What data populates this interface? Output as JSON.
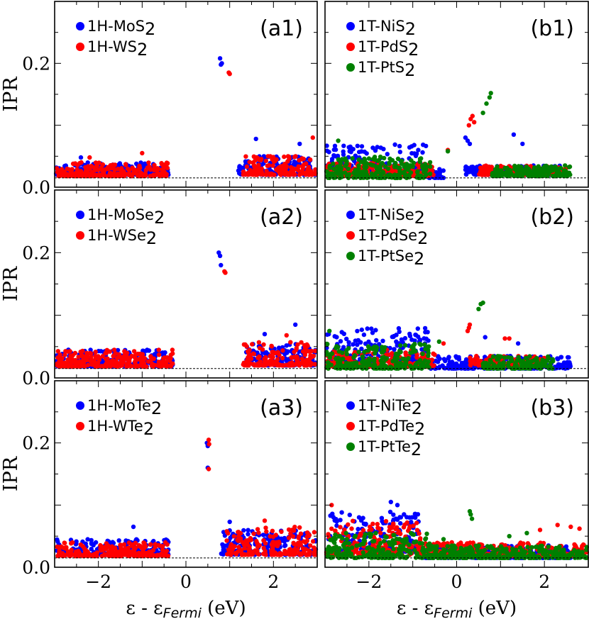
{
  "figure": {
    "y_axis_label": "IPR",
    "x_axis_label": {
      "main": "ε - ε",
      "sub": "Fermi",
      "unit": "(eV)"
    },
    "x_ticks": [
      "−2",
      "0",
      "2"
    ],
    "y_ticks": [
      "0.0",
      "0.2"
    ]
  },
  "chart_data": [
    {
      "id": "a1",
      "type": "scatter",
      "label": "(a1)",
      "xlim": [
        -3,
        3
      ],
      "ylim": [
        0,
        0.3
      ],
      "xlabel": "",
      "ylabel": "IPR",
      "baseline": 0.015,
      "series": [
        {
          "name": "1H-MoS2",
          "formula": [
            "1H-MoS",
            "2"
          ],
          "color": "#0000ff",
          "clusters": [
            [
              -3.0,
              -0.4,
              0.02,
              0.04
            ],
            [
              1.2,
              3.0,
              0.02,
              0.05
            ]
          ],
          "outliers": [
            [
              0.78,
              0.208
            ],
            [
              0.8,
              0.198
            ],
            [
              0.82,
              0.2
            ],
            [
              -2.4,
              0.048
            ],
            [
              1.6,
              0.078
            ],
            [
              2.6,
              0.07
            ]
          ]
        },
        {
          "name": "1H-WS2",
          "formula": [
            "1H-WS",
            "2"
          ],
          "color": "#ff0000",
          "clusters": [
            [
              -3.0,
              -0.4,
              0.018,
              0.04
            ],
            [
              1.3,
              3.0,
              0.02,
              0.05
            ]
          ],
          "outliers": [
            [
              0.98,
              0.185
            ],
            [
              1.0,
              0.183
            ],
            [
              -2.2,
              0.048
            ],
            [
              -1.0,
              0.055
            ],
            [
              2.9,
              0.08
            ]
          ]
        }
      ]
    },
    {
      "id": "b1",
      "type": "scatter",
      "label": "(b1)",
      "xlim": [
        -3,
        3
      ],
      "ylim": [
        0,
        0.3
      ],
      "xlabel": "",
      "ylabel": "",
      "baseline": 0.015,
      "series": [
        {
          "name": "1T-NiS2",
          "formula": [
            "1T-NiS",
            "2"
          ],
          "color": "#0000ff",
          "clusters": [
            [
              -3.0,
              -0.7,
              0.02,
              0.07
            ],
            [
              -0.7,
              -0.3,
              0.015,
              0.03
            ],
            [
              0.2,
              2.5,
              0.02,
              0.035
            ]
          ],
          "outliers": [
            [
              0.2,
              0.08
            ],
            [
              0.25,
              0.075
            ],
            [
              0.3,
              0.07
            ],
            [
              1.3,
              0.085
            ],
            [
              1.5,
              0.07
            ]
          ]
        },
        {
          "name": "1T-PdS2",
          "formula": [
            "1T-PdS",
            "2"
          ],
          "color": "#ff0000",
          "clusters": [
            [
              -3.0,
              -0.5,
              0.018,
              0.04
            ],
            [
              0.5,
              2.5,
              0.02,
              0.035
            ]
          ],
          "outliers": [
            [
              -0.2,
              0.06
            ],
            [
              0.28,
              0.1
            ],
            [
              0.32,
              0.11
            ],
            [
              0.36,
              0.115
            ],
            [
              0.4,
              0.105
            ]
          ]
        },
        {
          "name": "1T-PtS2",
          "formula": [
            "1T-PtS",
            "2"
          ],
          "color": "#008000",
          "clusters": [
            [
              -3.0,
              -0.6,
              0.015,
              0.05
            ],
            [
              0.8,
              2.6,
              0.018,
              0.035
            ]
          ],
          "outliers": [
            [
              -0.2,
              0.058
            ],
            [
              0.6,
              0.12
            ],
            [
              0.68,
              0.135
            ],
            [
              0.75,
              0.145
            ],
            [
              0.78,
              0.152
            ],
            [
              -2.7,
              0.075
            ]
          ]
        }
      ]
    },
    {
      "id": "a2",
      "type": "scatter",
      "label": "(a2)",
      "xlim": [
        -3,
        3
      ],
      "ylim": [
        0,
        0.3
      ],
      "xlabel": "",
      "ylabel": "IPR",
      "baseline": 0.015,
      "series": [
        {
          "name": "1H-MoSe2",
          "formula": [
            "1H-MoSe",
            "2"
          ],
          "color": "#0000ff",
          "clusters": [
            [
              -3.0,
              -0.3,
              0.018,
              0.045
            ],
            [
              1.3,
              3.0,
              0.02,
              0.055
            ]
          ],
          "outliers": [
            [
              0.75,
              0.2
            ],
            [
              0.78,
              0.195
            ],
            [
              0.8,
              0.18
            ],
            [
              2.5,
              0.085
            ],
            [
              1.8,
              0.07
            ]
          ]
        },
        {
          "name": "1H-WSe2",
          "formula": [
            "1H-WSe",
            "2"
          ],
          "color": "#ff0000",
          "clusters": [
            [
              -3.0,
              -0.3,
              0.018,
              0.045
            ],
            [
              1.3,
              3.0,
              0.02,
              0.06
            ]
          ],
          "outliers": [
            [
              0.88,
              0.17
            ],
            [
              0.9,
              0.168
            ],
            [
              2.3,
              0.068
            ]
          ]
        }
      ]
    },
    {
      "id": "b2",
      "type": "scatter",
      "label": "(b2)",
      "xlim": [
        -3,
        3
      ],
      "ylim": [
        0,
        0.3
      ],
      "xlabel": "",
      "ylabel": "",
      "baseline": 0.015,
      "series": [
        {
          "name": "1T-NiSe2",
          "formula": [
            "1T-NiSe",
            "2"
          ],
          "color": "#0000ff",
          "clusters": [
            [
              -3.0,
              -0.6,
              0.025,
              0.08
            ],
            [
              -0.6,
              2.6,
              0.015,
              0.035
            ]
          ],
          "outliers": [
            [
              0.65,
              0.065
            ],
            [
              1.4,
              0.055
            ]
          ]
        },
        {
          "name": "1T-PdSe2",
          "formula": [
            "1T-PdSe",
            "2"
          ],
          "color": "#ff0000",
          "clusters": [
            [
              -3.0,
              -0.5,
              0.018,
              0.045
            ],
            [
              0.3,
              2.0,
              0.02,
              0.035
            ]
          ],
          "outliers": [
            [
              -0.3,
              0.055
            ],
            [
              0.25,
              0.075
            ],
            [
              0.3,
              0.085
            ],
            [
              0.28,
              0.08
            ],
            [
              1.1,
              0.063
            ],
            [
              1.2,
              0.063
            ]
          ]
        },
        {
          "name": "1T-PtSe2",
          "formula": [
            "1T-PtSe",
            "2"
          ],
          "color": "#008000",
          "clusters": [
            [
              -3.0,
              -0.6,
              0.015,
              0.055
            ],
            [
              0.6,
              2.2,
              0.015,
              0.035
            ]
          ],
          "outliers": [
            [
              -0.4,
              0.058
            ],
            [
              0.5,
              0.11
            ],
            [
              0.55,
              0.118
            ],
            [
              0.6,
              0.12
            ],
            [
              -2.9,
              0.075
            ]
          ]
        }
      ]
    },
    {
      "id": "a3",
      "type": "scatter",
      "label": "(a3)",
      "xlim": [
        -3,
        3
      ],
      "ylim": [
        0,
        0.3
      ],
      "xlabel": "ε - εFermi (eV)",
      "ylabel": "IPR",
      "baseline": 0.015,
      "series": [
        {
          "name": "1H-MoTe2",
          "formula": [
            "1H-MoTe",
            "2"
          ],
          "color": "#0000ff",
          "clusters": [
            [
              -3.0,
              -0.4,
              0.02,
              0.045
            ],
            [
              0.8,
              3.0,
              0.02,
              0.06
            ]
          ],
          "outliers": [
            [
              0.48,
              0.2
            ],
            [
              0.5,
              0.195
            ],
            [
              0.5,
              0.16
            ],
            [
              -1.2,
              0.065
            ],
            [
              1.0,
              0.073
            ]
          ]
        },
        {
          "name": "1H-WTe2",
          "formula": [
            "1H-WTe",
            "2"
          ],
          "color": "#ff0000",
          "clusters": [
            [
              -3.0,
              -0.4,
              0.018,
              0.04
            ],
            [
              0.9,
              3.0,
              0.02,
              0.065
            ]
          ],
          "outliers": [
            [
              0.52,
              0.205
            ],
            [
              0.53,
              0.198
            ],
            [
              0.52,
              0.158
            ],
            [
              1.8,
              0.075
            ]
          ]
        }
      ]
    },
    {
      "id": "b3",
      "type": "scatter",
      "label": "(b3)",
      "xlim": [
        -3,
        3
      ],
      "ylim": [
        0,
        0.3
      ],
      "xlabel": "ε - εFermi (eV)",
      "ylabel": "",
      "baseline": 0.015,
      "series": [
        {
          "name": "1T-NiTe2",
          "formula": [
            "1T-NiTe",
            "2"
          ],
          "color": "#0000ff",
          "clusters": [
            [
              -3.0,
              -0.8,
              0.025,
              0.09
            ],
            [
              -0.8,
              2.6,
              0.015,
              0.035
            ]
          ],
          "outliers": [
            [
              -1.5,
              0.105
            ],
            [
              -1.35,
              0.1
            ],
            [
              -1.2,
              0.085
            ]
          ]
        },
        {
          "name": "1T-PdTe2",
          "formula": [
            "1T-PdTe",
            "2"
          ],
          "color": "#ff0000",
          "clusters": [
            [
              -3.0,
              -0.8,
              0.02,
              0.075
            ],
            [
              -0.8,
              3.0,
              0.018,
              0.04
            ]
          ],
          "outliers": [
            [
              -2.85,
              0.1
            ],
            [
              2.3,
              0.068
            ],
            [
              2.6,
              0.065
            ],
            [
              2.8,
              0.062
            ],
            [
              1.9,
              0.06
            ]
          ]
        },
        {
          "name": "1T-PtTe2",
          "formula": [
            "1T-PtTe",
            "2"
          ],
          "color": "#008000",
          "clusters": [
            [
              -3.0,
              -0.6,
              0.015,
              0.055
            ],
            [
              -0.6,
              3.0,
              0.015,
              0.035
            ]
          ],
          "outliers": [
            [
              0.3,
              0.09
            ],
            [
              0.32,
              0.085
            ],
            [
              0.35,
              0.078
            ],
            [
              1.2,
              0.05
            ],
            [
              1.6,
              0.055
            ],
            [
              -0.3,
              0.045
            ]
          ]
        }
      ]
    }
  ]
}
